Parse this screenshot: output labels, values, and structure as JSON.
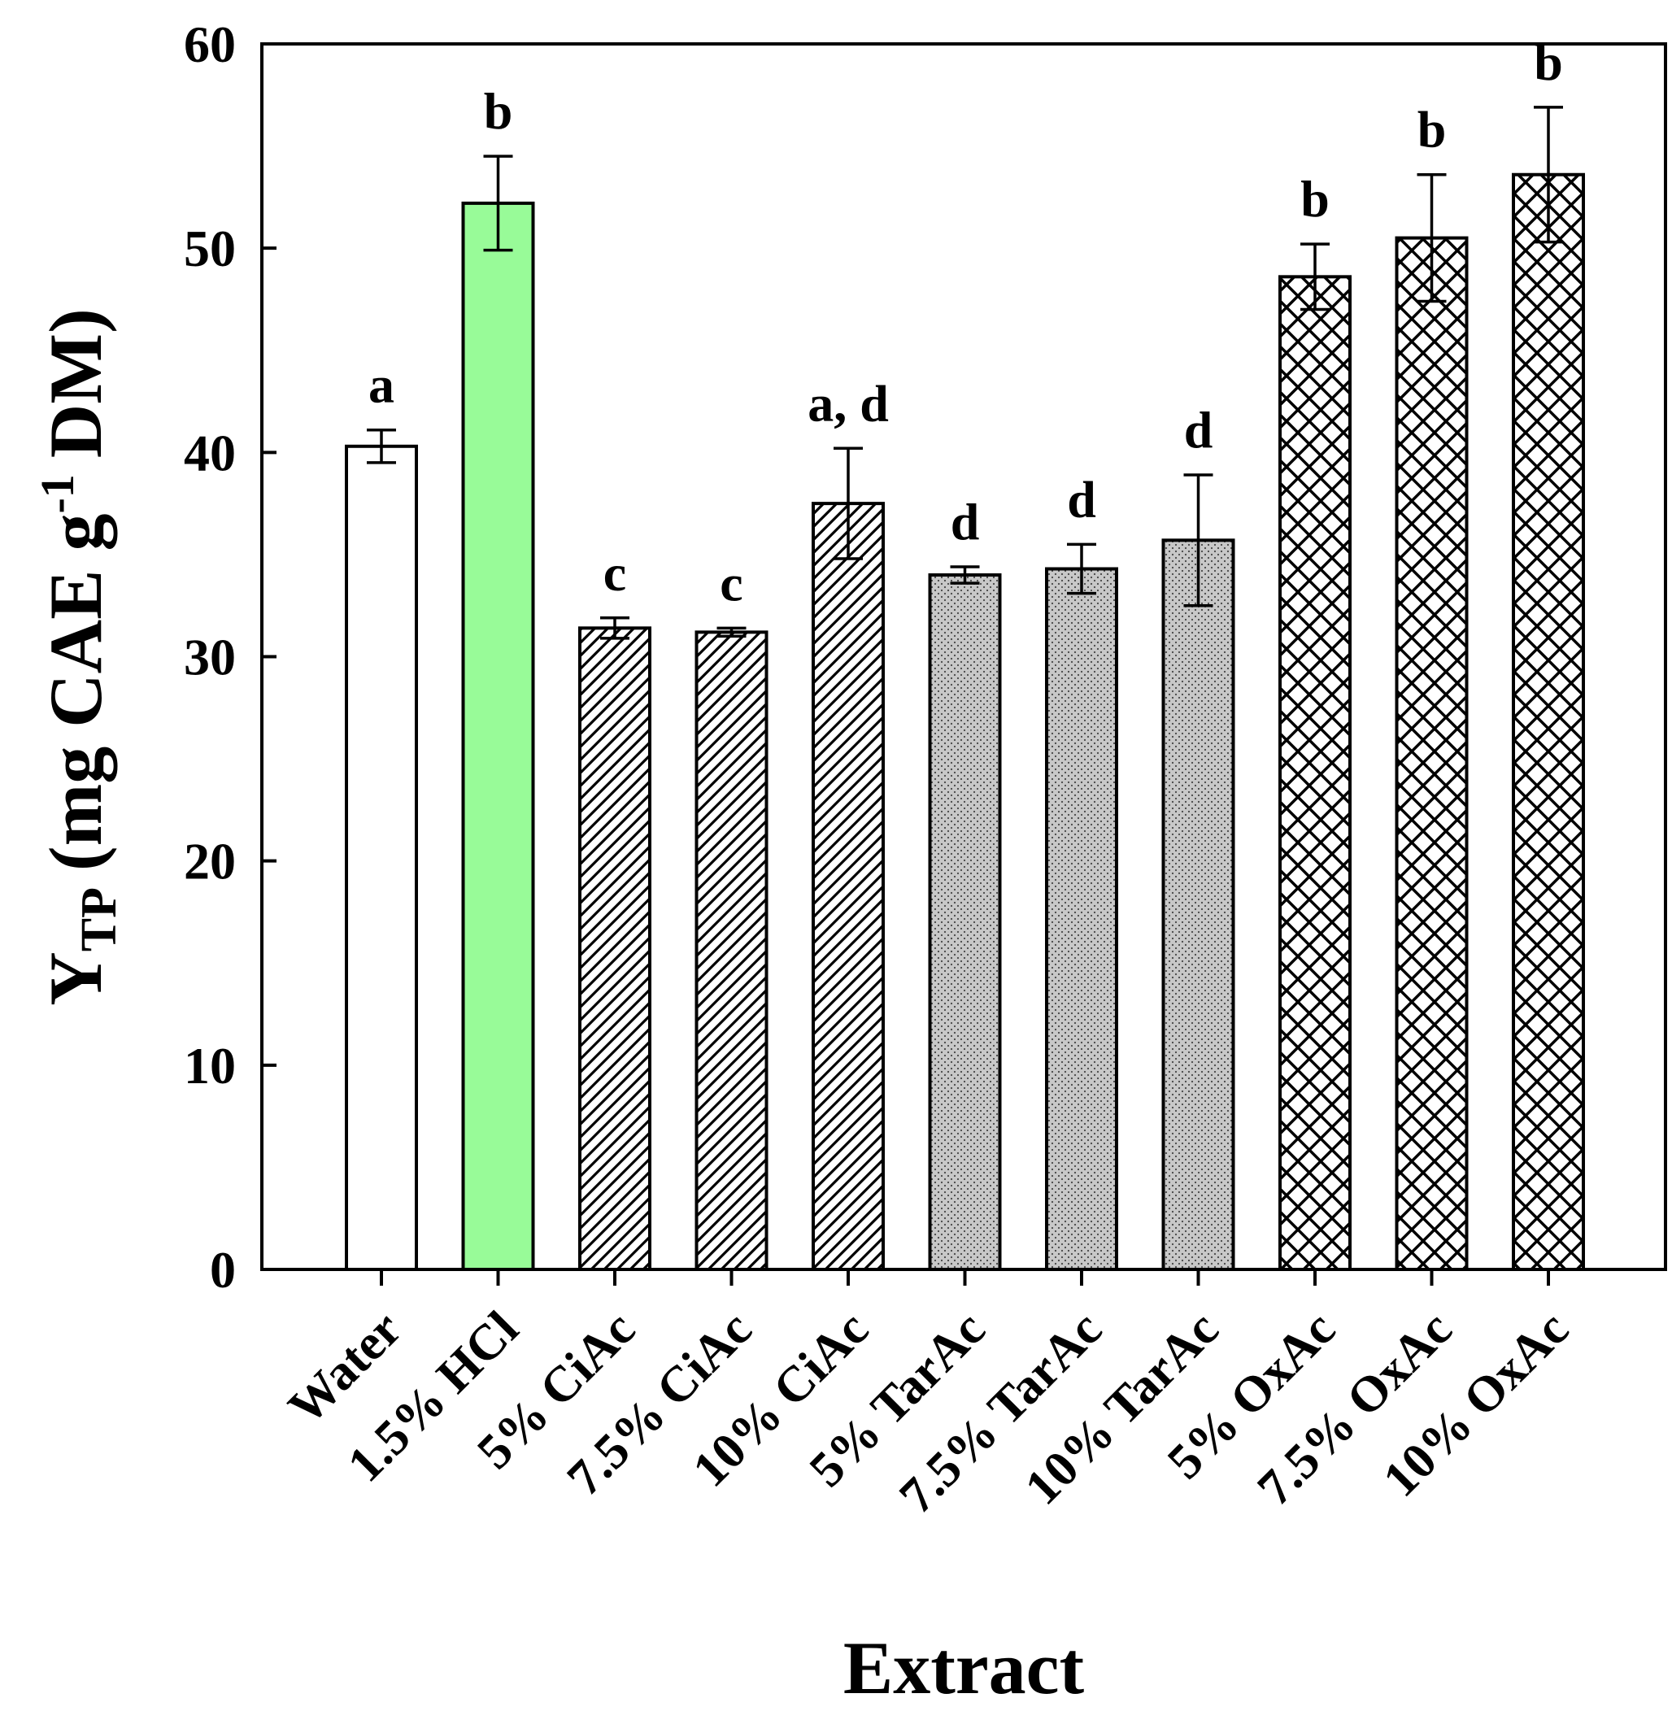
{
  "chart_data": {
    "type": "bar",
    "title": "",
    "xlabel": "Extract",
    "ylabel": {
      "main": "Y",
      "subscript": "TP",
      "unit_pre": "(mg CAE g",
      "superscript": "-1",
      "unit_post": "DM)"
    },
    "ylim": [
      0,
      60
    ],
    "yticks": [
      0,
      10,
      20,
      30,
      40,
      50,
      60
    ],
    "grid": false,
    "legend": "none",
    "categories": [
      "Water",
      "1.5% HCl",
      "5% CiAc",
      "7.5% CiAc",
      "10% CiAc",
      "5% TarAc",
      "7.5% TarAc",
      "10% TarAc",
      "5% OxAc",
      "7.5% OxAc",
      "10% OxAc"
    ],
    "values": [
      40.3,
      52.2,
      31.4,
      31.2,
      37.5,
      34.0,
      34.3,
      35.7,
      48.6,
      50.5,
      53.6
    ],
    "errors": [
      0.8,
      2.3,
      0.5,
      0.2,
      2.7,
      0.4,
      1.2,
      3.2,
      1.6,
      3.1,
      3.3
    ],
    "significance": [
      "a",
      "b",
      "c",
      "c",
      "a, d",
      "d",
      "d",
      "d",
      "b",
      "b",
      "b"
    ],
    "fills": [
      "white",
      "green",
      "diagonal-hatch",
      "diagonal-hatch",
      "diagonal-hatch",
      "dotted",
      "dotted",
      "dotted",
      "crosshatch",
      "crosshatch",
      "crosshatch"
    ],
    "colors": {
      "green": "#98fb98",
      "dotted_bg": "#c8c8c8",
      "stroke": "#000000",
      "white": "#ffffff"
    }
  }
}
